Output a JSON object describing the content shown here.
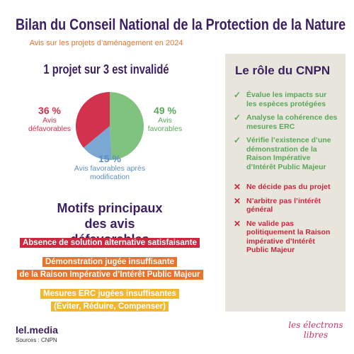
{
  "header": {
    "title": "Bilan du Conseil National de la Protection de la Nature",
    "subtitle": "Avis sur les projets d’aménagement en 2024"
  },
  "pie_heading": "1 projet sur 3 est invalidé",
  "chart_data": {
    "type": "pie",
    "categories": [
      "Avis favorables",
      "Avis favorables après modification",
      "Avis défavorables"
    ],
    "values": [
      49,
      15,
      36
    ],
    "value_labels": [
      "49 %",
      "15 %",
      "36 %"
    ],
    "colors": [
      "#80c37e",
      "#7ba8d3",
      "#d2324b"
    ]
  },
  "motifs": {
    "title": "Motifs principaux des avis défavorables",
    "items": [
      {
        "color": "#c9283f",
        "lines": [
          "Absence de solution alternative satisfaisante"
        ]
      },
      {
        "color": "#e8732a",
        "lines": [
          "Démonstration jugée insuffisante",
          "de la Raison Impérative d’Intérêt Public Majeur"
        ]
      },
      {
        "color": "#f2b731",
        "lines": [
          "Mesures ERC jugées insuffisantes",
          "(Éviter, Réduire, Compenser)"
        ]
      }
    ]
  },
  "role": {
    "title": "Le rôle du CNPN",
    "does": [
      "Évalue les impacts sur les espèces protégées",
      "Analyse la cohérence des mesures ERC",
      "Vérifie l’existence d’une démonstration de la Raison Impérative d’Intérêt Public Majeur"
    ],
    "does_not": [
      "Ne décide pas du projet",
      "N’arbitre pas l’intérêt général",
      "Ne valide pas politiquement la Raison impérative d’Intérêt Public Majeur"
    ]
  },
  "footer": {
    "brand": "lel.media",
    "source": "Sources : CNPN",
    "logo_1": "les électrons",
    "logo_2": "libres"
  }
}
